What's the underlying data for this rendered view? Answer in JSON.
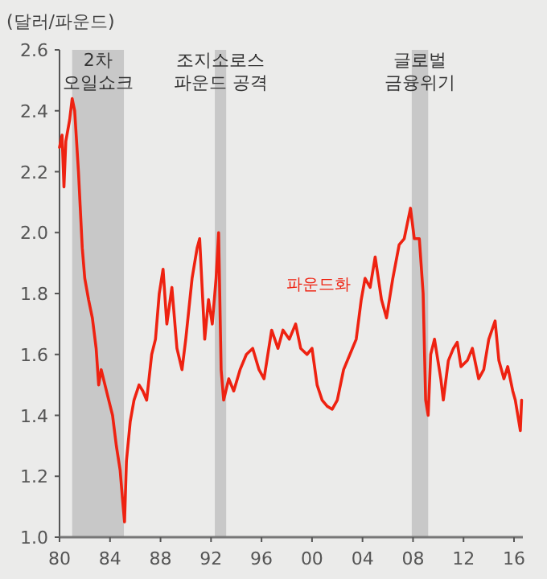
{
  "chart_data": {
    "type": "line",
    "ylabel": "(달러/파운드)",
    "xlim": [
      1980,
      2016.7
    ],
    "ylim": [
      1.0,
      2.6
    ],
    "xticks": [
      {
        "value": 1980,
        "label": "80"
      },
      {
        "value": 1984,
        "label": "84"
      },
      {
        "value": 1988,
        "label": "88"
      },
      {
        "value": 1992,
        "label": "92"
      },
      {
        "value": 1996,
        "label": "96"
      },
      {
        "value": 2000,
        "label": "00"
      },
      {
        "value": 2004,
        "label": "04"
      },
      {
        "value": 2008,
        "label": "08"
      },
      {
        "value": 2012,
        "label": "12"
      },
      {
        "value": 2016,
        "label": "16"
      }
    ],
    "yticks": [
      {
        "value": 1.0,
        "label": "1.0"
      },
      1.2,
      1.4,
      1.6,
      1.8,
      {
        "value": 2.0,
        "label": "2.0"
      },
      2.2,
      2.4,
      2.6
    ],
    "bands": [
      {
        "axis": "x",
        "from": 1981.0,
        "to": 1985.1,
        "label": "2차\n오일쇼크",
        "color": "#c8c8c8"
      },
      {
        "axis": "x",
        "from": 1992.3,
        "to": 1993.2,
        "label": "조지소로스\n파운드 공격",
        "color": "#c8c8c8"
      },
      {
        "axis": "x",
        "from": 2007.9,
        "to": 2009.2,
        "label": "글로벌\n금융위기",
        "color": "#c8c8c8"
      }
    ],
    "series": [
      {
        "name": "파운드화",
        "color": "#ee2211",
        "x": [
          1980.0,
          1980.2,
          1980.35,
          1980.5,
          1980.8,
          1981.0,
          1981.2,
          1981.5,
          1981.8,
          1982.0,
          1982.3,
          1982.6,
          1982.9,
          1983.1,
          1983.3,
          1983.6,
          1983.9,
          1984.2,
          1984.5,
          1984.8,
          1985.0,
          1985.15,
          1985.3,
          1985.6,
          1985.9,
          1986.3,
          1986.6,
          1986.9,
          1987.3,
          1987.6,
          1987.9,
          1988.2,
          1988.5,
          1988.9,
          1989.3,
          1989.7,
          1990.0,
          1990.5,
          1990.9,
          1991.1,
          1991.5,
          1991.8,
          1992.1,
          1992.4,
          1992.6,
          1992.8,
          1993.0,
          1993.4,
          1993.8,
          1994.3,
          1994.8,
          1995.3,
          1995.8,
          1996.2,
          1996.8,
          1997.3,
          1997.7,
          1998.2,
          1998.7,
          1999.1,
          1999.6,
          2000.0,
          2000.4,
          2000.8,
          2001.2,
          2001.6,
          2002.0,
          2002.5,
          2003.0,
          2003.5,
          2003.9,
          2004.2,
          2004.6,
          2005.0,
          2005.5,
          2005.9,
          2006.4,
          2006.9,
          2007.3,
          2007.8,
          2008.1,
          2008.5,
          2008.8,
          2009.0,
          2009.2,
          2009.4,
          2009.7,
          2010.2,
          2010.4,
          2010.8,
          2011.2,
          2011.5,
          2011.8,
          2012.3,
          2012.7,
          2013.2,
          2013.6,
          2014.0,
          2014.5,
          2014.8,
          2015.2,
          2015.5,
          2015.9,
          2016.1,
          2016.3,
          2016.5,
          2016.6
        ],
        "values": [
          2.28,
          2.32,
          2.15,
          2.3,
          2.37,
          2.44,
          2.4,
          2.2,
          1.95,
          1.85,
          1.78,
          1.72,
          1.62,
          1.5,
          1.55,
          1.5,
          1.45,
          1.4,
          1.3,
          1.22,
          1.12,
          1.05,
          1.25,
          1.38,
          1.45,
          1.5,
          1.48,
          1.45,
          1.6,
          1.65,
          1.8,
          1.88,
          1.7,
          1.82,
          1.62,
          1.55,
          1.65,
          1.85,
          1.95,
          1.98,
          1.65,
          1.78,
          1.7,
          1.85,
          2.0,
          1.55,
          1.45,
          1.52,
          1.48,
          1.55,
          1.6,
          1.62,
          1.55,
          1.52,
          1.68,
          1.62,
          1.68,
          1.65,
          1.7,
          1.62,
          1.6,
          1.62,
          1.5,
          1.45,
          1.43,
          1.42,
          1.45,
          1.55,
          1.6,
          1.65,
          1.78,
          1.85,
          1.82,
          1.92,
          1.78,
          1.72,
          1.85,
          1.96,
          1.98,
          2.08,
          1.98,
          1.98,
          1.8,
          1.45,
          1.4,
          1.6,
          1.65,
          1.52,
          1.45,
          1.58,
          1.62,
          1.64,
          1.56,
          1.58,
          1.62,
          1.52,
          1.55,
          1.65,
          1.71,
          1.58,
          1.52,
          1.56,
          1.48,
          1.45,
          1.4,
          1.35,
          1.45
        ]
      }
    ]
  }
}
